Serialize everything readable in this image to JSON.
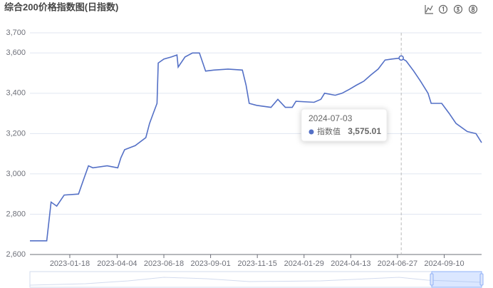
{
  "chart_data": {
    "type": "line",
    "title": "综合200价格指数图(日指数)",
    "x": [
      "2022-11-15",
      "2022-12-12",
      "2022-12-19",
      "2022-12-28",
      "2023-01-09",
      "2023-02-01",
      "2023-02-10",
      "2023-02-17",
      "2023-02-24",
      "2023-03-19",
      "2023-04-05",
      "2023-04-10",
      "2023-04-16",
      "2023-05-03",
      "2023-05-20",
      "2023-05-26",
      "2023-06-01",
      "2023-06-07",
      "2023-06-09",
      "2023-06-18",
      "2023-06-30",
      "2023-07-09",
      "2023-07-11",
      "2023-07-22",
      "2023-08-03",
      "2023-08-14",
      "2023-08-24",
      "2023-09-06",
      "2023-09-29",
      "2023-10-22",
      "2023-10-28",
      "2023-11-02",
      "2023-11-14",
      "2023-12-07",
      "2023-12-18",
      "2023-12-30",
      "2024-01-10",
      "2024-01-16",
      "2024-02-14",
      "2024-02-25",
      "2024-03-02",
      "2024-03-19",
      "2024-03-30",
      "2024-04-11",
      "2024-04-22",
      "2024-05-04",
      "2024-05-15",
      "2024-05-27",
      "2024-06-07",
      "2024-06-18",
      "2024-07-03",
      "2024-07-11",
      "2024-07-23",
      "2024-08-03",
      "2024-08-15",
      "2024-08-20",
      "2024-09-06",
      "2024-09-18",
      "2024-09-29",
      "2024-10-17",
      "2024-10-31",
      "2024-11-09"
    ],
    "series": [
      {
        "name": "指数值",
        "color": "#5470c6",
        "values": [
          2668,
          2668,
          2860,
          2840,
          2895,
          2900,
          2980,
          3040,
          3030,
          3040,
          3030,
          3080,
          3120,
          3140,
          3180,
          3250,
          3300,
          3350,
          3550,
          3570,
          3580,
          3590,
          3530,
          3580,
          3600,
          3600,
          3510,
          3515,
          3520,
          3515,
          3440,
          3350,
          3340,
          3330,
          3370,
          3330,
          3330,
          3360,
          3355,
          3370,
          3400,
          3390,
          3400,
          3420,
          3440,
          3460,
          3490,
          3520,
          3565,
          3570,
          3575.01,
          3560,
          3510,
          3460,
          3400,
          3350,
          3350,
          3300,
          3250,
          3210,
          3200,
          3155
        ]
      }
    ],
    "xlim": [
      "2022-11-15",
      "2024-11-09"
    ],
    "xticks": [
      "2023-01-18",
      "2023-04-04",
      "2023-06-18",
      "2023-09-01",
      "2023-11-15",
      "2024-01-29",
      "2024-04-13",
      "2024-06-27",
      "2024-09-10"
    ],
    "ylim": [
      2600,
      3700
    ],
    "yticks": [
      {
        "value": 2600,
        "label": "2,600"
      },
      {
        "value": 2800,
        "label": "2,800"
      },
      {
        "value": 3000,
        "label": "3,000"
      },
      {
        "value": 3200,
        "label": "3,200"
      },
      {
        "value": 3400,
        "label": "3,400"
      },
      {
        "value": 3600,
        "label": "3,600"
      },
      {
        "value": 3700,
        "label": "3,700"
      }
    ],
    "grid": true,
    "tooltip": {
      "title": "2024-07-03",
      "value_label": "3,575.01"
    }
  }
}
